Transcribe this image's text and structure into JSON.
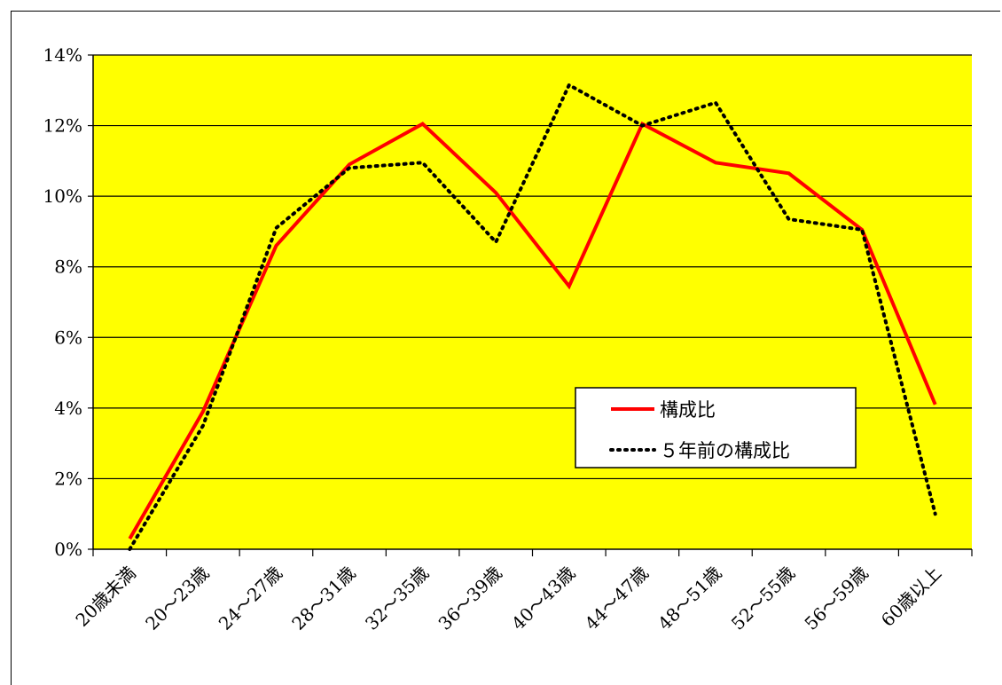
{
  "chart_data": {
    "type": "line",
    "title": "",
    "xlabel": "",
    "ylabel": "",
    "categories": [
      "20歳未満",
      "20～23歳",
      "24～27歳",
      "28～31歳",
      "32～35歳",
      "36～39歳",
      "40～43歳",
      "44～47歳",
      "48～51歳",
      "52～55歳",
      "56～59歳",
      "60歳以上"
    ],
    "ylim": [
      0,
      14
    ],
    "y_ticks": [
      "0%",
      "2%",
      "4%",
      "6%",
      "8%",
      "10%",
      "12%",
      "14%"
    ],
    "y_tick_values": [
      0,
      2,
      4,
      6,
      8,
      10,
      12,
      14
    ],
    "grid": true,
    "plot_background": "#ffff00",
    "legend": {
      "placement": "inside-lower-right"
    },
    "series": [
      {
        "name": "構成比",
        "color": "#ff0000",
        "style": "solid",
        "values": [
          0.3,
          3.9,
          8.6,
          10.9,
          12.05,
          10.1,
          7.45,
          12.05,
          10.95,
          10.65,
          9.05,
          4.1
        ]
      },
      {
        "name": "５年前の構成比",
        "color": "#000000",
        "style": "dotted",
        "values": [
          0.0,
          3.5,
          9.1,
          10.8,
          10.95,
          8.7,
          13.15,
          12.0,
          12.65,
          9.35,
          9.05,
          1.0
        ]
      }
    ]
  }
}
